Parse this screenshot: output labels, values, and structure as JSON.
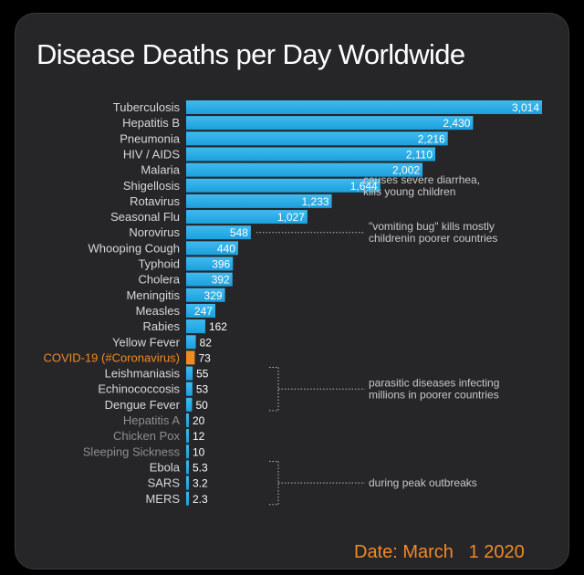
{
  "colors": {
    "panel": "#262528",
    "bar": "#1c9fdc",
    "bar_light": "#3fbbef",
    "highlight": "#f08a24",
    "text": "#d8d8d8",
    "faded_text": "#8e8e90"
  },
  "chart_data": {
    "type": "bar",
    "orientation": "horizontal",
    "title": "Disease Deaths per Day Worldwide",
    "xlabel": "",
    "ylabel": "",
    "xlim": [
      0,
      3014
    ],
    "grid": false,
    "categories": [
      "Tuberculosis",
      "Hepatitis B",
      "Pneumonia",
      "HIV / AIDS",
      "Malaria",
      "Shigellosis",
      "Rotavirus",
      "Seasonal Flu",
      "Norovirus",
      "Whooping Cough",
      "Typhoid",
      "Cholera",
      "Meningitis",
      "Measles",
      "Rabies",
      "Yellow Fever",
      "COVID-19 (#Coronavirus)",
      "Leishmaniasis",
      "Echinococcosis",
      "Dengue Fever",
      "Hepatitis A",
      "Chicken Pox",
      "Sleeping Sickness",
      "Ebola",
      "SARS",
      "MERS"
    ],
    "values": [
      3014,
      2430,
      2216,
      2110,
      2002,
      1644,
      1233,
      1027,
      548,
      440,
      396,
      392,
      329,
      247,
      162,
      82,
      73,
      55,
      53,
      50,
      20,
      12,
      10,
      5.3,
      3.2,
      2.3
    ],
    "value_labels": [
      "3,014",
      "2,430",
      "2,216",
      "2,110",
      "2,002",
      "1,644",
      "1,233",
      "1,027",
      "548",
      "440",
      "396",
      "392",
      "329",
      "247",
      "162",
      "82",
      "73",
      "55",
      "53",
      "50",
      "20",
      "12",
      "10",
      "5.3",
      "3.2",
      "2.3"
    ],
    "highlight_index": 16,
    "faded_indices": [
      20,
      21,
      22
    ],
    "annotations": [
      {
        "lines": [
          "causes severe diarrhea,",
          "kills young children"
        ],
        "from": 5,
        "to": 5
      },
      {
        "lines": [
          "\"vomiting bug\" kills mostly",
          "childrenin poorer countries"
        ],
        "from": 8,
        "to": 8
      },
      {
        "lines": [
          "parasitic diseases infecting",
          "millions in poorer countries"
        ],
        "from": 17,
        "to": 19
      },
      {
        "lines": [
          "during peak outbreaks"
        ],
        "from": 23,
        "to": 25
      }
    ]
  },
  "date": {
    "label": "Date: March   1 2020"
  }
}
